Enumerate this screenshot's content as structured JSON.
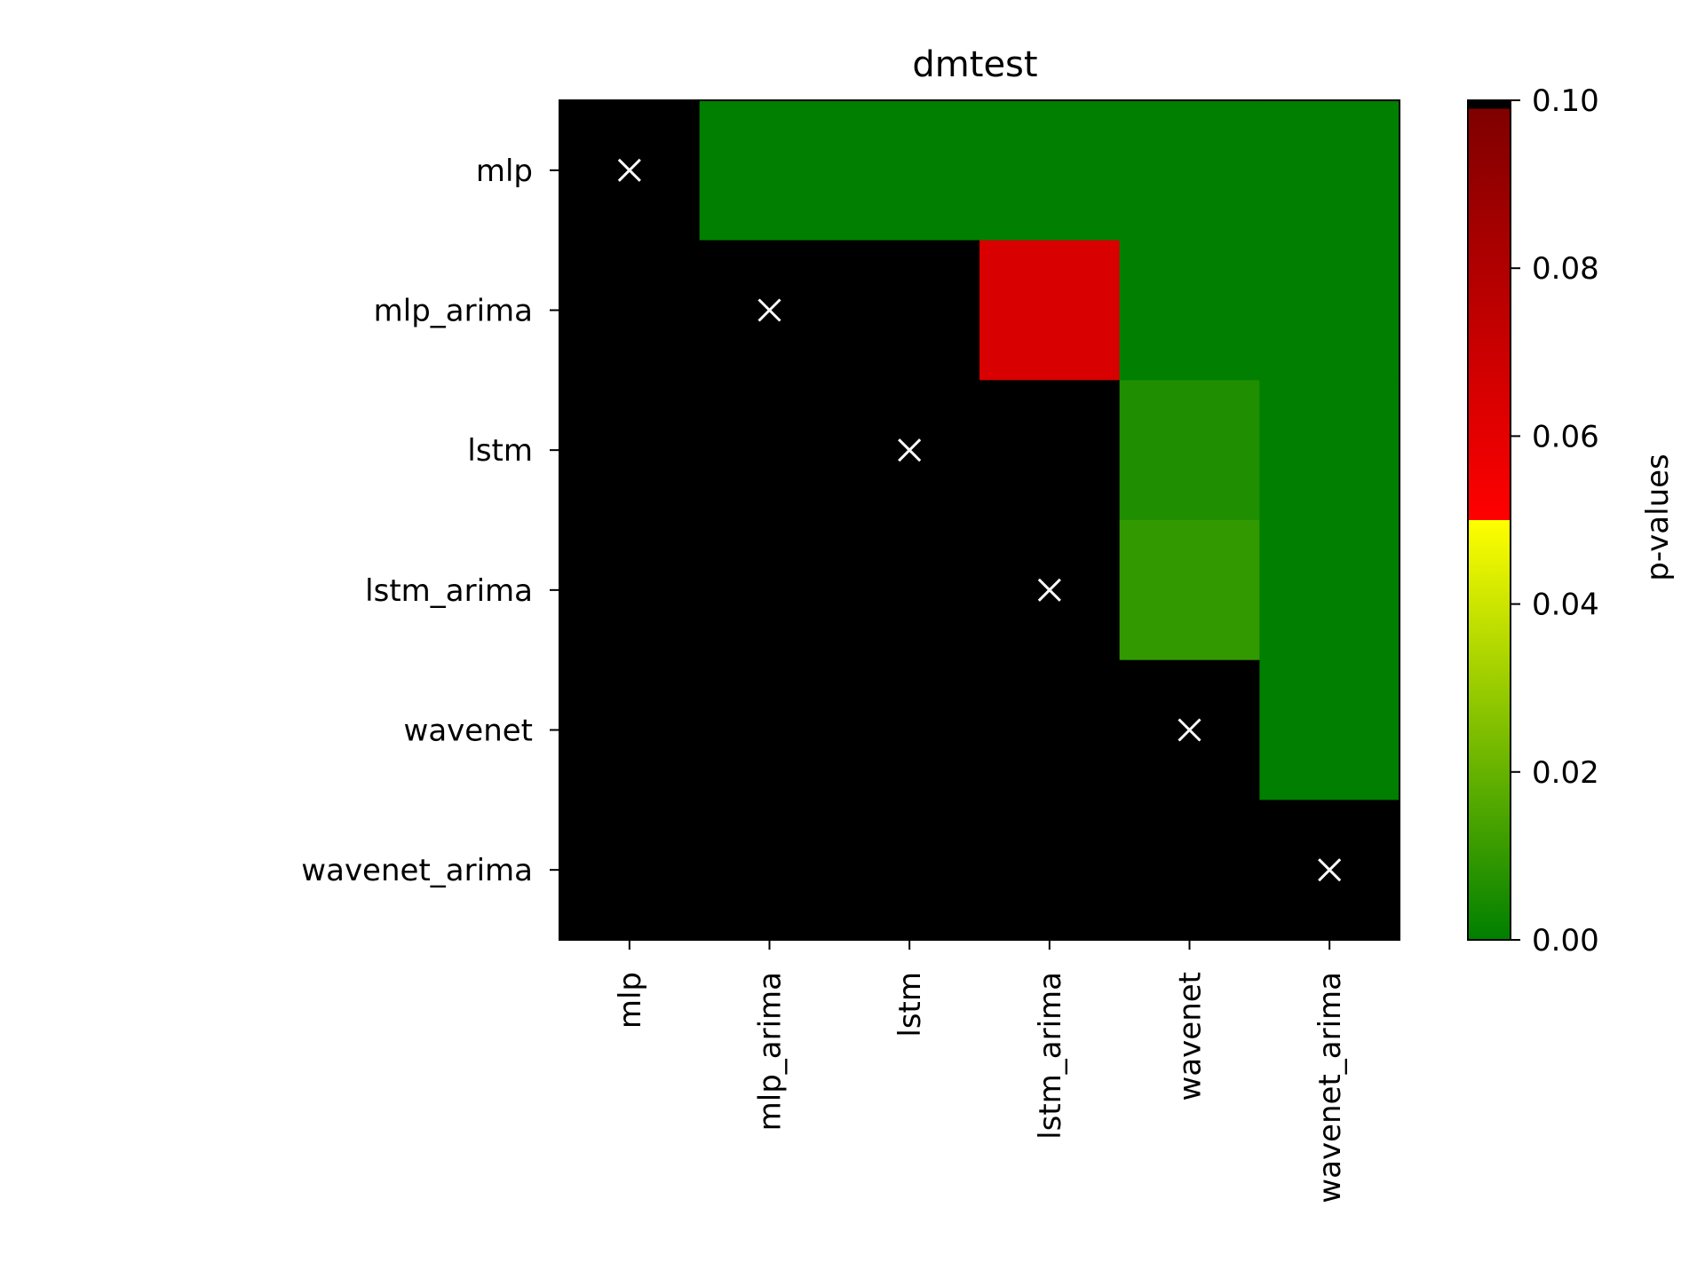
{
  "chart_data": {
    "type": "heatmap",
    "title": "dmtest",
    "x_categories": [
      "mlp",
      "mlp_arima",
      "lstm",
      "lstm_arima",
      "wavenet",
      "wavenet_arima"
    ],
    "y_categories": [
      "mlp",
      "mlp_arima",
      "lstm",
      "lstm_arima",
      "wavenet",
      "wavenet_arima"
    ],
    "values": [
      [
        null,
        0.0,
        0.0,
        0.0,
        0.0,
        0.0
      ],
      [
        null,
        null,
        null,
        0.065,
        0.0,
        0.0
      ],
      [
        null,
        null,
        null,
        null,
        0.006,
        0.0
      ],
      [
        null,
        null,
        null,
        null,
        0.01,
        0.0
      ],
      [
        null,
        null,
        null,
        null,
        null,
        0.0
      ],
      [
        null,
        null,
        null,
        null,
        null,
        null
      ]
    ],
    "masked_color": "#000000",
    "diagonal_marker": "×",
    "colorbar": {
      "label": "p-values",
      "range": [
        0.0,
        0.1
      ],
      "ticks": [
        "0.00",
        "0.02",
        "0.04",
        "0.06",
        "0.08",
        "0.10"
      ],
      "stops": [
        {
          "value": 0.0,
          "color": "#007f00"
        },
        {
          "value": 0.05,
          "color": "#ffff00"
        },
        {
          "value": 0.05,
          "color": "#ff0000"
        },
        {
          "value": 0.099,
          "color": "#7f0000"
        },
        {
          "value": 0.099,
          "color": "#000000"
        },
        {
          "value": 0.1,
          "color": "#000000"
        }
      ]
    }
  }
}
